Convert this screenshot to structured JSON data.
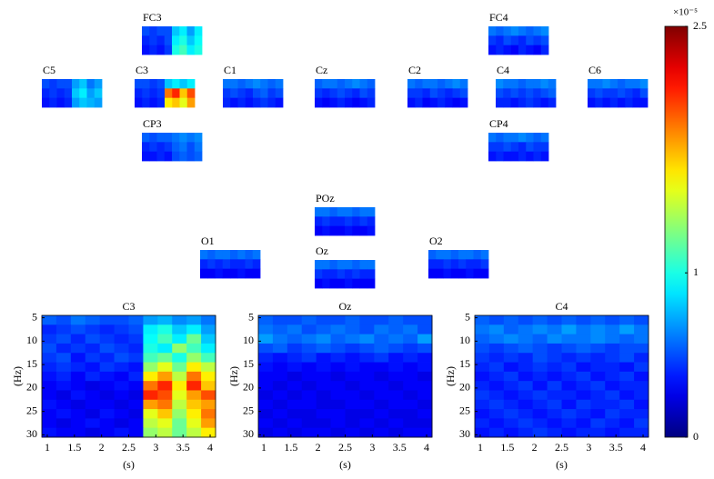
{
  "chart_data": {
    "type": "heatmap",
    "colorbar": {
      "exponent_label": "×10⁻⁵",
      "lim": [
        0,
        2.5
      ],
      "ticks": [
        0,
        1,
        2.5
      ]
    },
    "channels": [
      {
        "name": "FC3",
        "values": [
          [
            0.5,
            0.45,
            0.5,
            0.5,
            0.8,
            0.9,
            0.7,
            0.9
          ],
          [
            0.4,
            0.45,
            0.4,
            0.5,
            0.9,
            1.0,
            0.8,
            0.95
          ],
          [
            0.35,
            0.4,
            0.35,
            0.45,
            1.0,
            1.1,
            0.9,
            1.0
          ]
        ]
      },
      {
        "name": "FC4",
        "values": [
          [
            0.6,
            0.55,
            0.6,
            0.65,
            0.6,
            0.55,
            0.6,
            0.65
          ],
          [
            0.45,
            0.4,
            0.5,
            0.45,
            0.4,
            0.5,
            0.45,
            0.5
          ],
          [
            0.35,
            0.4,
            0.35,
            0.3,
            0.4,
            0.35,
            0.3,
            0.4
          ]
        ]
      },
      {
        "name": "C5",
        "values": [
          [
            0.5,
            0.45,
            0.5,
            0.5,
            0.7,
            0.8,
            0.6,
            0.7
          ],
          [
            0.4,
            0.45,
            0.4,
            0.45,
            0.8,
            0.9,
            0.7,
            0.8
          ],
          [
            0.35,
            0.4,
            0.35,
            0.4,
            0.7,
            0.8,
            0.75,
            0.7
          ]
        ]
      },
      {
        "name": "C3",
        "values": [
          [
            0.5,
            0.5,
            0.45,
            0.5,
            0.8,
            0.9,
            0.8,
            0.9
          ],
          [
            0.4,
            0.45,
            0.4,
            0.45,
            1.9,
            2.1,
            1.7,
            2.0
          ],
          [
            0.35,
            0.4,
            0.35,
            0.4,
            1.6,
            1.7,
            1.5,
            1.8
          ]
        ]
      },
      {
        "name": "C1",
        "values": [
          [
            0.6,
            0.6,
            0.55,
            0.6,
            0.65,
            0.6,
            0.55,
            0.6
          ],
          [
            0.45,
            0.5,
            0.45,
            0.4,
            0.5,
            0.55,
            0.45,
            0.5
          ],
          [
            0.4,
            0.35,
            0.4,
            0.35,
            0.4,
            0.45,
            0.4,
            0.35
          ]
        ]
      },
      {
        "name": "Cz",
        "values": [
          [
            0.55,
            0.6,
            0.6,
            0.55,
            0.6,
            0.65,
            0.6,
            0.55
          ],
          [
            0.45,
            0.4,
            0.45,
            0.5,
            0.45,
            0.4,
            0.5,
            0.45
          ],
          [
            0.35,
            0.3,
            0.35,
            0.4,
            0.35,
            0.3,
            0.35,
            0.4
          ]
        ]
      },
      {
        "name": "C2",
        "values": [
          [
            0.6,
            0.55,
            0.6,
            0.6,
            0.55,
            0.6,
            0.65,
            0.6
          ],
          [
            0.45,
            0.45,
            0.4,
            0.5,
            0.45,
            0.4,
            0.45,
            0.5
          ],
          [
            0.35,
            0.4,
            0.3,
            0.35,
            0.4,
            0.35,
            0.3,
            0.35
          ]
        ]
      },
      {
        "name": "C4",
        "values": [
          [
            0.65,
            0.6,
            0.6,
            0.55,
            0.6,
            0.6,
            0.65,
            0.6
          ],
          [
            0.5,
            0.45,
            0.5,
            0.45,
            0.5,
            0.45,
            0.5,
            0.55
          ],
          [
            0.4,
            0.4,
            0.35,
            0.4,
            0.45,
            0.4,
            0.35,
            0.4
          ]
        ]
      },
      {
        "name": "C6",
        "values": [
          [
            0.6,
            0.6,
            0.65,
            0.6,
            0.55,
            0.6,
            0.6,
            0.65
          ],
          [
            0.45,
            0.5,
            0.45,
            0.45,
            0.5,
            0.45,
            0.4,
            0.5
          ],
          [
            0.35,
            0.4,
            0.35,
            0.4,
            0.35,
            0.4,
            0.35,
            0.35
          ]
        ]
      },
      {
        "name": "CP3",
        "values": [
          [
            0.55,
            0.5,
            0.55,
            0.55,
            0.6,
            0.65,
            0.6,
            0.65
          ],
          [
            0.4,
            0.45,
            0.4,
            0.45,
            0.55,
            0.6,
            0.5,
            0.6
          ],
          [
            0.35,
            0.35,
            0.4,
            0.35,
            0.5,
            0.55,
            0.5,
            0.55
          ]
        ]
      },
      {
        "name": "CP4",
        "values": [
          [
            0.6,
            0.55,
            0.6,
            0.6,
            0.65,
            0.6,
            0.55,
            0.6
          ],
          [
            0.45,
            0.45,
            0.5,
            0.45,
            0.4,
            0.5,
            0.45,
            0.45
          ],
          [
            0.35,
            0.4,
            0.35,
            0.35,
            0.4,
            0.35,
            0.4,
            0.35
          ]
        ]
      },
      {
        "name": "POz",
        "values": [
          [
            0.6,
            0.6,
            0.55,
            0.6,
            0.6,
            0.55,
            0.6,
            0.6
          ],
          [
            0.4,
            0.45,
            0.4,
            0.4,
            0.45,
            0.4,
            0.45,
            0.4
          ],
          [
            0.3,
            0.35,
            0.3,
            0.3,
            0.35,
            0.3,
            0.3,
            0.35
          ]
        ]
      },
      {
        "name": "O1",
        "values": [
          [
            0.6,
            0.55,
            0.6,
            0.6,
            0.55,
            0.6,
            0.55,
            0.6
          ],
          [
            0.4,
            0.45,
            0.4,
            0.45,
            0.4,
            0.4,
            0.45,
            0.4
          ],
          [
            0.3,
            0.3,
            0.35,
            0.3,
            0.3,
            0.35,
            0.3,
            0.3
          ]
        ]
      },
      {
        "name": "Oz",
        "values": [
          [
            0.6,
            0.6,
            0.55,
            0.6,
            0.6,
            0.55,
            0.6,
            0.6
          ],
          [
            0.45,
            0.4,
            0.4,
            0.45,
            0.4,
            0.45,
            0.4,
            0.4
          ],
          [
            0.3,
            0.35,
            0.3,
            0.3,
            0.35,
            0.3,
            0.3,
            0.3
          ]
        ]
      },
      {
        "name": "O2",
        "values": [
          [
            0.55,
            0.6,
            0.6,
            0.55,
            0.6,
            0.6,
            0.55,
            0.6
          ],
          [
            0.4,
            0.4,
            0.45,
            0.4,
            0.45,
            0.4,
            0.4,
            0.45
          ],
          [
            0.3,
            0.3,
            0.35,
            0.3,
            0.3,
            0.35,
            0.3,
            0.3
          ]
        ]
      }
    ],
    "panels": [
      {
        "title": "C3",
        "xlabel": "(s)",
        "ylabel": "(Hz)",
        "xlim": [
          0.9,
          4.1
        ],
        "ylim": [
          30.5,
          4.5
        ],
        "xticks": [
          1,
          1.5,
          2,
          2.5,
          3,
          3.5,
          4
        ],
        "yticks": [
          5,
          10,
          15,
          20,
          25,
          30
        ],
        "values": [
          [
            0.55,
            0.5,
            0.6,
            0.55,
            0.5,
            0.5,
            0.55,
            0.7,
            0.75,
            0.65,
            0.7,
            0.6
          ],
          [
            0.4,
            0.45,
            0.5,
            0.45,
            0.4,
            0.45,
            0.5,
            0.9,
            1.0,
            0.8,
            0.9,
            0.7
          ],
          [
            0.45,
            0.5,
            0.4,
            0.5,
            0.45,
            0.4,
            0.45,
            0.95,
            1.1,
            0.9,
            1.2,
            0.8
          ],
          [
            0.5,
            0.4,
            0.45,
            0.4,
            0.5,
            0.45,
            0.4,
            1.0,
            0.9,
            1.3,
            1.1,
            0.9
          ],
          [
            0.45,
            0.5,
            0.35,
            0.45,
            0.4,
            0.5,
            0.45,
            1.1,
            1.2,
            1.0,
            1.3,
            1.1
          ],
          [
            0.4,
            0.45,
            0.4,
            0.35,
            0.45,
            0.4,
            0.35,
            1.3,
            1.5,
            1.2,
            1.6,
            1.4
          ],
          [
            0.35,
            0.4,
            0.3,
            0.4,
            0.35,
            0.3,
            0.4,
            1.6,
            1.8,
            1.4,
            1.9,
            1.6
          ],
          [
            0.3,
            0.35,
            0.3,
            0.25,
            0.3,
            0.35,
            0.3,
            1.9,
            2.1,
            1.6,
            2.1,
            1.7
          ],
          [
            0.3,
            0.25,
            0.35,
            0.3,
            0.25,
            0.3,
            0.25,
            2.1,
            2.0,
            1.5,
            1.8,
            2.0
          ],
          [
            0.35,
            0.3,
            0.25,
            0.3,
            0.3,
            0.25,
            0.3,
            1.8,
            1.9,
            1.4,
            1.7,
            1.8
          ],
          [
            0.3,
            0.35,
            0.3,
            0.25,
            0.35,
            0.3,
            0.25,
            1.5,
            1.7,
            1.3,
            1.6,
            1.9
          ],
          [
            0.3,
            0.25,
            0.3,
            0.35,
            0.3,
            0.25,
            0.3,
            1.4,
            1.5,
            1.2,
            1.5,
            1.8
          ],
          [
            0.35,
            0.3,
            0.3,
            0.25,
            0.3,
            0.35,
            0.3,
            1.3,
            1.4,
            1.2,
            1.4,
            1.6
          ]
        ]
      },
      {
        "title": "Oz",
        "xlabel": "(s)",
        "ylabel": "(Hz)",
        "xlim": [
          0.9,
          4.1
        ],
        "ylim": [
          30.5,
          4.5
        ],
        "xticks": [
          1,
          1.5,
          2,
          2.5,
          3,
          3.5,
          4
        ],
        "yticks": [
          5,
          10,
          15,
          20,
          25,
          30
        ],
        "values": [
          [
            0.55,
            0.5,
            0.5,
            0.55,
            0.5,
            0.5,
            0.55,
            0.5,
            0.5,
            0.55,
            0.5,
            0.5
          ],
          [
            0.6,
            0.55,
            0.6,
            0.5,
            0.55,
            0.6,
            0.55,
            0.5,
            0.6,
            0.55,
            0.6,
            0.5
          ],
          [
            0.7,
            0.6,
            0.55,
            0.6,
            0.65,
            0.55,
            0.6,
            0.65,
            0.55,
            0.6,
            0.55,
            0.7
          ],
          [
            0.5,
            0.55,
            0.45,
            0.5,
            0.55,
            0.5,
            0.45,
            0.5,
            0.55,
            0.5,
            0.45,
            0.5
          ],
          [
            0.4,
            0.35,
            0.4,
            0.45,
            0.35,
            0.4,
            0.35,
            0.4,
            0.45,
            0.35,
            0.4,
            0.35
          ],
          [
            0.35,
            0.3,
            0.35,
            0.3,
            0.35,
            0.3,
            0.35,
            0.3,
            0.3,
            0.35,
            0.3,
            0.35
          ],
          [
            0.3,
            0.3,
            0.25,
            0.3,
            0.3,
            0.25,
            0.3,
            0.3,
            0.25,
            0.3,
            0.3,
            0.25
          ],
          [
            0.3,
            0.25,
            0.3,
            0.25,
            0.3,
            0.3,
            0.25,
            0.3,
            0.3,
            0.25,
            0.3,
            0.3
          ],
          [
            0.25,
            0.3,
            0.25,
            0.3,
            0.25,
            0.3,
            0.3,
            0.25,
            0.3,
            0.3,
            0.25,
            0.3
          ],
          [
            0.3,
            0.25,
            0.3,
            0.3,
            0.25,
            0.25,
            0.3,
            0.3,
            0.25,
            0.3,
            0.3,
            0.25
          ],
          [
            0.25,
            0.3,
            0.25,
            0.25,
            0.3,
            0.3,
            0.25,
            0.25,
            0.3,
            0.25,
            0.25,
            0.3
          ],
          [
            0.3,
            0.25,
            0.3,
            0.25,
            0.25,
            0.3,
            0.25,
            0.3,
            0.25,
            0.3,
            0.25,
            0.25
          ],
          [
            0.25,
            0.3,
            0.25,
            0.3,
            0.3,
            0.25,
            0.3,
            0.25,
            0.3,
            0.25,
            0.3,
            0.3
          ]
        ]
      },
      {
        "title": "C4",
        "xlabel": "(s)",
        "ylabel": "(Hz)",
        "xlim": [
          0.9,
          4.1
        ],
        "ylim": [
          30.5,
          4.5
        ],
        "xticks": [
          1,
          1.5,
          2,
          2.5,
          3,
          3.5,
          4
        ],
        "yticks": [
          5,
          10,
          15,
          20,
          25,
          30
        ],
        "values": [
          [
            0.55,
            0.5,
            0.55,
            0.5,
            0.55,
            0.5,
            0.55,
            0.5,
            0.55,
            0.5,
            0.55,
            0.5
          ],
          [
            0.6,
            0.65,
            0.55,
            0.6,
            0.65,
            0.6,
            0.7,
            0.6,
            0.65,
            0.6,
            0.7,
            0.6
          ],
          [
            0.55,
            0.6,
            0.65,
            0.6,
            0.55,
            0.65,
            0.6,
            0.6,
            0.65,
            0.6,
            0.55,
            0.6
          ],
          [
            0.5,
            0.45,
            0.5,
            0.55,
            0.5,
            0.45,
            0.5,
            0.55,
            0.5,
            0.45,
            0.5,
            0.5
          ],
          [
            0.45,
            0.4,
            0.45,
            0.4,
            0.5,
            0.45,
            0.4,
            0.45,
            0.4,
            0.45,
            0.5,
            0.4
          ],
          [
            0.4,
            0.45,
            0.35,
            0.4,
            0.45,
            0.4,
            0.45,
            0.35,
            0.4,
            0.4,
            0.35,
            0.45
          ],
          [
            0.35,
            0.4,
            0.45,
            0.35,
            0.4,
            0.35,
            0.4,
            0.45,
            0.35,
            0.4,
            0.45,
            0.35
          ],
          [
            0.4,
            0.35,
            0.4,
            0.45,
            0.35,
            0.45,
            0.35,
            0.4,
            0.45,
            0.35,
            0.4,
            0.4
          ],
          [
            0.45,
            0.4,
            0.35,
            0.4,
            0.45,
            0.4,
            0.4,
            0.35,
            0.4,
            0.45,
            0.35,
            0.4
          ],
          [
            0.4,
            0.45,
            0.4,
            0.35,
            0.4,
            0.45,
            0.35,
            0.45,
            0.4,
            0.4,
            0.45,
            0.35
          ],
          [
            0.35,
            0.4,
            0.45,
            0.4,
            0.35,
            0.4,
            0.45,
            0.4,
            0.35,
            0.45,
            0.4,
            0.4
          ],
          [
            0.4,
            0.35,
            0.4,
            0.45,
            0.4,
            0.35,
            0.4,
            0.35,
            0.45,
            0.4,
            0.35,
            0.45
          ],
          [
            0.35,
            0.4,
            0.35,
            0.4,
            0.45,
            0.4,
            0.35,
            0.4,
            0.4,
            0.35,
            0.4,
            0.4
          ]
        ]
      }
    ]
  }
}
